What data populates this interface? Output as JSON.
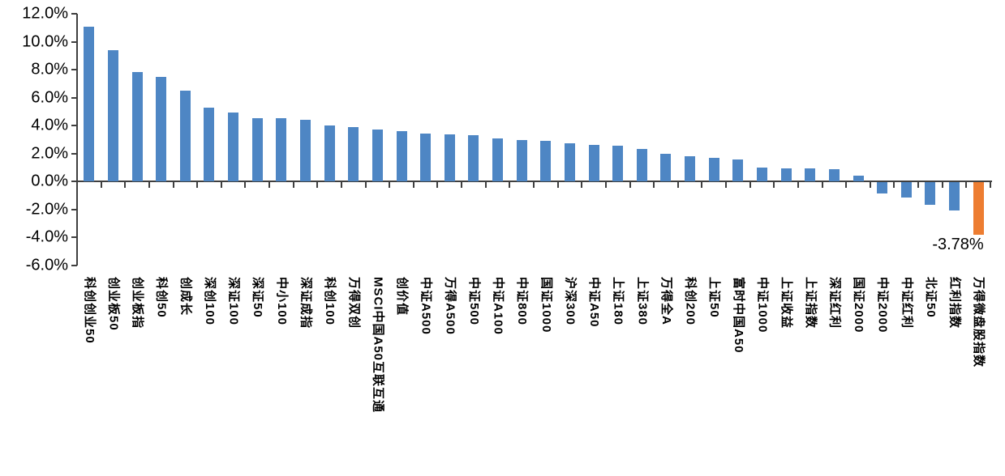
{
  "chart_data": {
    "type": "bar",
    "title": "",
    "xlabel": "",
    "ylabel": "",
    "ylim": [
      -6.0,
      12.0
    ],
    "y_tick_step": 2.0,
    "y_tick_labels": [
      "12.0%",
      "10.0%",
      "8.0%",
      "6.0%",
      "4.0%",
      "2.0%",
      "0.0%",
      "-2.0%",
      "-4.0%",
      "-6.0%"
    ],
    "grid": false,
    "legend": null,
    "categories": [
      "科创创业50",
      "创业板50",
      "创业板指",
      "科创50",
      "创成长",
      "深创100",
      "深证100",
      "深证50",
      "中小100",
      "深证成指",
      "科创100",
      "万得双创",
      "MSCI中国A50互联互通",
      "创价值",
      "中证A500",
      "万得A500",
      "中证500",
      "中证A100",
      "中证800",
      "国证1000",
      "沪深300",
      "中证A50",
      "上证180",
      "上证380",
      "万得全A",
      "科创200",
      "上证50",
      "富时中国A50",
      "中证1000",
      "上证收益",
      "上证指数",
      "深证红利",
      "国证2000",
      "中证2000",
      "中证红利",
      "北证50",
      "红利指数",
      "万得微盘股指数"
    ],
    "values": [
      11.1,
      9.4,
      7.8,
      7.5,
      6.5,
      5.3,
      4.9,
      4.55,
      4.5,
      4.4,
      4.0,
      3.9,
      3.7,
      3.6,
      3.4,
      3.35,
      3.3,
      3.1,
      2.95,
      2.9,
      2.75,
      2.6,
      2.55,
      2.3,
      1.95,
      1.8,
      1.7,
      1.55,
      1.0,
      0.95,
      0.9,
      0.85,
      0.4,
      -0.8,
      -1.1,
      -1.6,
      -2.0,
      -3.78
    ],
    "unit": "%",
    "highlight": {
      "category": "万得微盘股指数",
      "color": "#ed7d31"
    },
    "annotation": {
      "text": "-3.78%",
      "target": "万得微盘股指数"
    }
  },
  "colors": {
    "bar": "#4e86c4",
    "highlight": "#ed7d31",
    "axis": "#3f3f3f",
    "text": "#000000"
  }
}
